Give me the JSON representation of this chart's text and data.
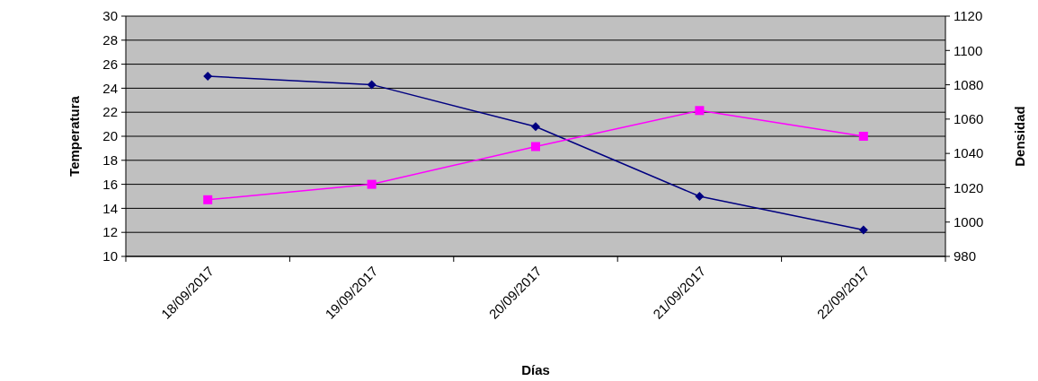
{
  "chart_data": {
    "type": "line",
    "xlabel": "Días",
    "ylabel": "Temperatura",
    "y2label": "Densidad",
    "categories": [
      "18/09/2017",
      "19/09/2017",
      "20/09/2017",
      "21/09/2017",
      "22/09/2017"
    ],
    "series": [
      {
        "color": "#000080",
        "values": [
          25,
          24.3,
          20.8,
          15,
          12.2
        ],
        "marker": "diamond"
      },
      {
        "color": "#ff00ff",
        "values": [
          1013,
          1022,
          1044,
          1065,
          1050
        ],
        "axis": "y2",
        "marker": "square"
      }
    ],
    "ylim": [
      10,
      30
    ],
    "yticks": [
      10,
      12,
      14,
      16,
      18,
      20,
      22,
      24,
      26,
      28,
      30
    ],
    "y2lim": [
      980,
      1120
    ],
    "y2ticks": [
      980,
      1000,
      1020,
      1040,
      1060,
      1080,
      1100,
      1120
    ],
    "grid": "y"
  }
}
